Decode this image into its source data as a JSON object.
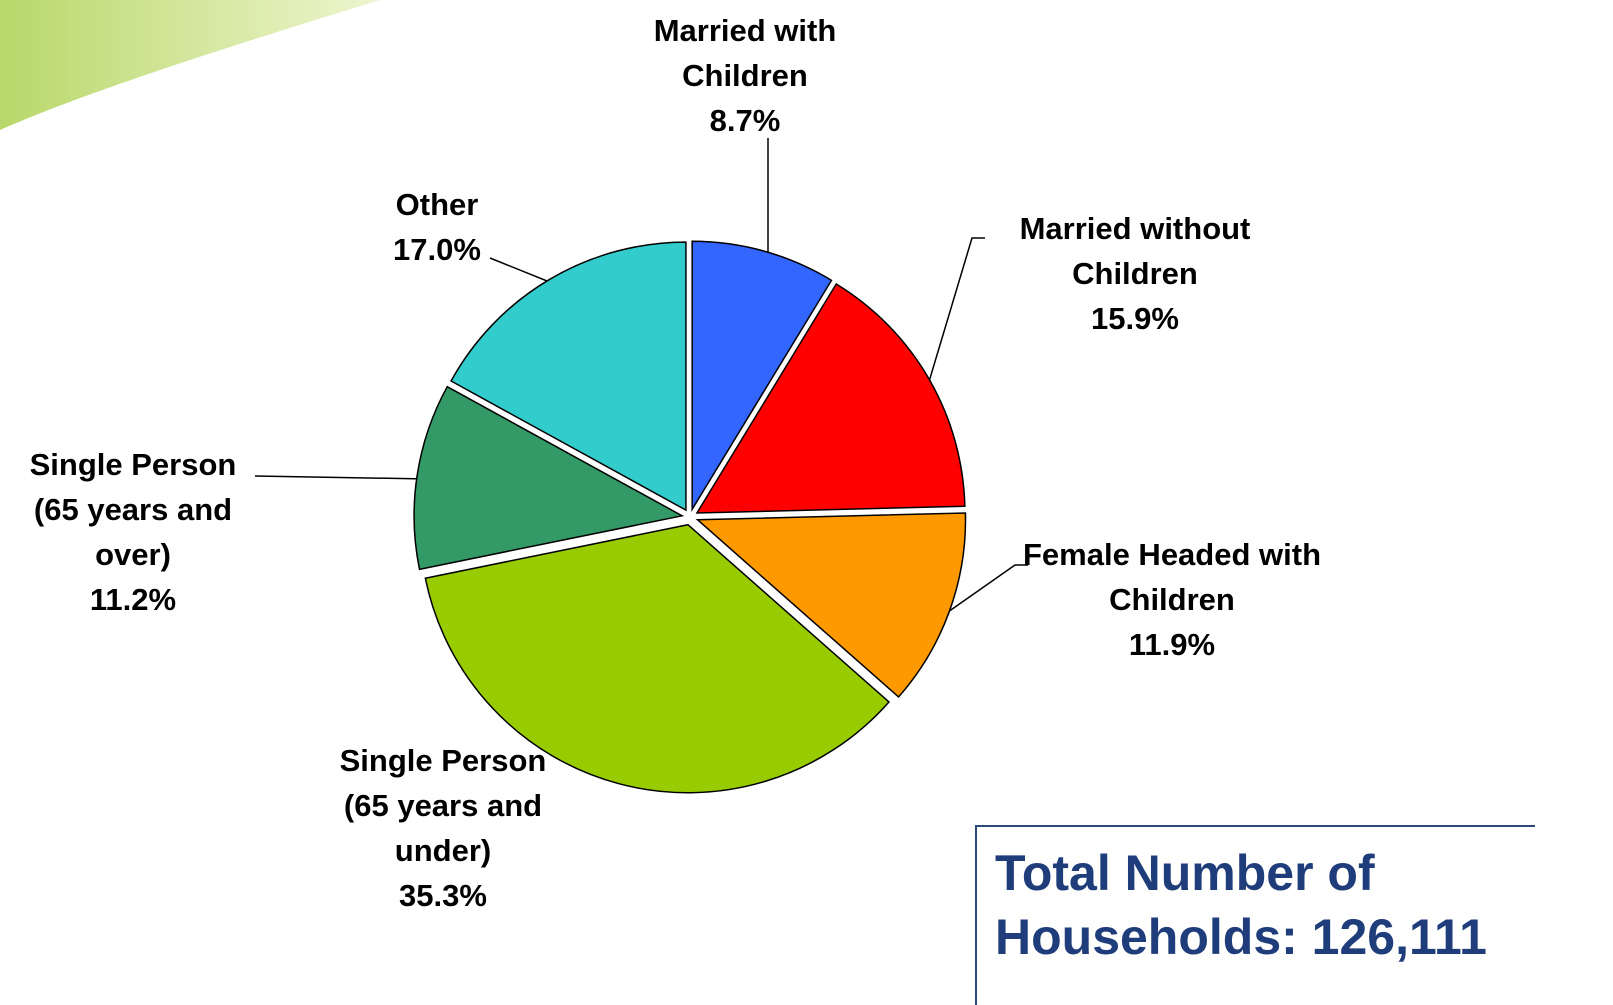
{
  "chart_data": {
    "type": "pie",
    "categories": [
      "Married with Children",
      "Married without Children",
      "Female Headed with Children",
      "Single Person (65 years and under)",
      "Single Person (65 years and over)",
      "Other"
    ],
    "values": [
      8.7,
      15.9,
      11.9,
      35.3,
      11.2,
      17.0
    ],
    "value_labels": [
      "8.7%",
      "15.9%",
      "11.9%",
      "35.3%",
      "11.2%",
      "17.0%"
    ],
    "colors": [
      "#3366ff",
      "#ff0000",
      "#ff9900",
      "#99cc00",
      "#339966",
      "#33cccc"
    ],
    "annotation": "Total Number of Households: 126,111"
  }
}
